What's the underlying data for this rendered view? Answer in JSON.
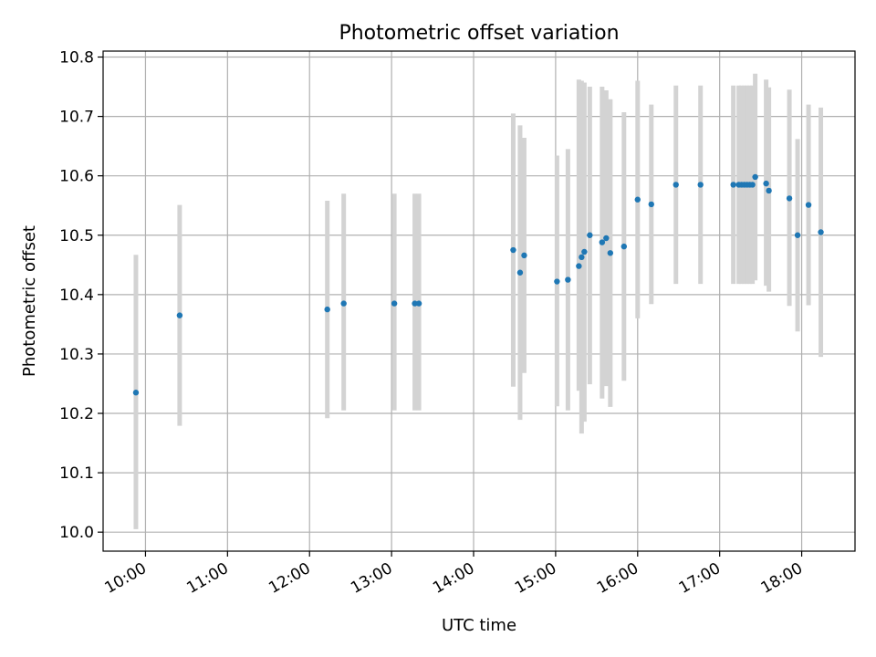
{
  "chart_data": {
    "type": "scatter",
    "title": "Photometric offset variation",
    "xlabel": "UTC time",
    "ylabel": "Photometric offset",
    "x_unit": "hours",
    "xlim": [
      "09:29",
      "18:39"
    ],
    "ylim": [
      9.968,
      10.81
    ],
    "x_ticks": [
      "10:00",
      "11:00",
      "12:00",
      "13:00",
      "14:00",
      "15:00",
      "16:00",
      "17:00",
      "18:00"
    ],
    "y_ticks": [
      10.0,
      10.1,
      10.2,
      10.3,
      10.4,
      10.5,
      10.6,
      10.7,
      10.8
    ],
    "y_tick_labels": [
      "10.0",
      "10.1",
      "10.2",
      "10.3",
      "10.4",
      "10.5",
      "10.6",
      "10.7",
      "10.8"
    ],
    "grid": true,
    "colors": {
      "point": "#1f77b4",
      "error_bar": "#d3d3d3",
      "grid": "#b0b0b0"
    },
    "points": [
      {
        "t": "09:53",
        "y": 10.235,
        "lo": 10.005,
        "hi": 10.467
      },
      {
        "t": "10:25",
        "y": 10.365,
        "lo": 10.179,
        "hi": 10.551
      },
      {
        "t": "12:13",
        "y": 10.375,
        "lo": 10.192,
        "hi": 10.558
      },
      {
        "t": "12:25",
        "y": 10.385,
        "lo": 10.205,
        "hi": 10.57
      },
      {
        "t": "13:02",
        "y": 10.385,
        "lo": 10.205,
        "hi": 10.57
      },
      {
        "t": "13:17",
        "y": 10.385,
        "lo": 10.205,
        "hi": 10.57
      },
      {
        "t": "13:20",
        "y": 10.385,
        "lo": 10.205,
        "hi": 10.57
      },
      {
        "t": "14:29",
        "y": 10.475,
        "lo": 10.245,
        "hi": 10.705
      },
      {
        "t": "14:34",
        "y": 10.437,
        "lo": 10.189,
        "hi": 10.685
      },
      {
        "t": "14:37",
        "y": 10.466,
        "lo": 10.268,
        "hi": 10.664
      },
      {
        "t": "15:01",
        "y": 10.422,
        "lo": 10.212,
        "hi": 10.634
      },
      {
        "t": "15:09",
        "y": 10.425,
        "lo": 10.205,
        "hi": 10.645
      },
      {
        "t": "15:17",
        "y": 10.448,
        "lo": 10.238,
        "hi": 10.762
      },
      {
        "t": "15:19",
        "y": 10.463,
        "lo": 10.166,
        "hi": 10.76
      },
      {
        "t": "15:21",
        "y": 10.472,
        "lo": 10.186,
        "hi": 10.757
      },
      {
        "t": "15:25",
        "y": 10.5,
        "lo": 10.249,
        "hi": 10.75
      },
      {
        "t": "15:34",
        "y": 10.488,
        "lo": 10.225,
        "hi": 10.75
      },
      {
        "t": "15:37",
        "y": 10.495,
        "lo": 10.246,
        "hi": 10.744
      },
      {
        "t": "15:40",
        "y": 10.47,
        "lo": 10.211,
        "hi": 10.729
      },
      {
        "t": "15:50",
        "y": 10.481,
        "lo": 10.255,
        "hi": 10.707
      },
      {
        "t": "16:00",
        "y": 10.56,
        "lo": 10.36,
        "hi": 10.76
      },
      {
        "t": "16:10",
        "y": 10.552,
        "lo": 10.384,
        "hi": 10.72
      },
      {
        "t": "16:28",
        "y": 10.585,
        "lo": 10.418,
        "hi": 10.752
      },
      {
        "t": "16:46",
        "y": 10.585,
        "lo": 10.418,
        "hi": 10.752
      },
      {
        "t": "17:10",
        "y": 10.585,
        "lo": 10.418,
        "hi": 10.752
      },
      {
        "t": "17:14",
        "y": 10.585,
        "lo": 10.418,
        "hi": 10.752
      },
      {
        "t": "17:16",
        "y": 10.585,
        "lo": 10.418,
        "hi": 10.752
      },
      {
        "t": "17:18",
        "y": 10.585,
        "lo": 10.418,
        "hi": 10.752
      },
      {
        "t": "17:20",
        "y": 10.585,
        "lo": 10.418,
        "hi": 10.752
      },
      {
        "t": "17:22",
        "y": 10.585,
        "lo": 10.418,
        "hi": 10.752
      },
      {
        "t": "17:24",
        "y": 10.585,
        "lo": 10.418,
        "hi": 10.752
      },
      {
        "t": "17:26",
        "y": 10.598,
        "lo": 10.424,
        "hi": 10.772
      },
      {
        "t": "17:34",
        "y": 10.587,
        "lo": 10.415,
        "hi": 10.762
      },
      {
        "t": "17:36",
        "y": 10.575,
        "lo": 10.405,
        "hi": 10.749
      },
      {
        "t": "17:51",
        "y": 10.562,
        "lo": 10.381,
        "hi": 10.745
      },
      {
        "t": "17:57",
        "y": 10.5,
        "lo": 10.338,
        "hi": 10.662
      },
      {
        "t": "18:05",
        "y": 10.551,
        "lo": 10.382,
        "hi": 10.72
      },
      {
        "t": "18:14",
        "y": 10.505,
        "lo": 10.295,
        "hi": 10.715
      }
    ]
  }
}
